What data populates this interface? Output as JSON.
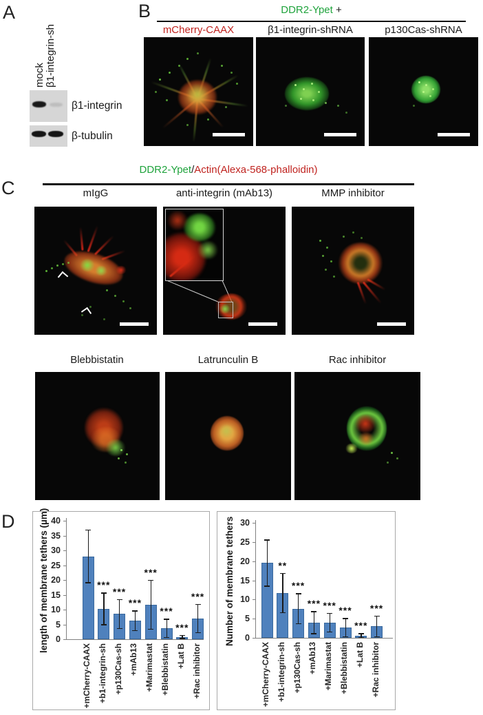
{
  "figure": {
    "panel_a": {
      "label": "A",
      "lanes": [
        "mock",
        "β1-integrin-sh"
      ],
      "blots": [
        {
          "name": "β1-integrin"
        },
        {
          "name": "β-tubulin"
        }
      ]
    },
    "panel_b": {
      "label": "B",
      "title_green": "DDR2-Ypet",
      "title_suffix": " +",
      "columns": [
        "mCherry-CAAX",
        "β1-integrin-shRNA",
        "p130Cas-shRNA"
      ]
    },
    "panel_c": {
      "label": "C",
      "title_green": "DDR2-Ypet",
      "title_sep": "/",
      "title_red": "Actin(Alexa-568-phalloidin)",
      "row1": [
        "mIgG",
        "anti-integrin (mAb13)",
        "MMP inhibitor"
      ],
      "row2": [
        "Blebbistatin",
        "Latrunculin B",
        "Rac inhibitor"
      ]
    },
    "panel_d": {
      "label": "D"
    }
  },
  "chart_data": [
    {
      "type": "bar",
      "title": "",
      "ylabel": "length of membrane tethers (µm)",
      "xlabel": "",
      "ylim": [
        0,
        40
      ],
      "ytick_step": 5,
      "grid": false,
      "legend": false,
      "categories": [
        "+mCherry-CAAX",
        "+b1-integrin-sh",
        "+p130Cas-sh",
        "+mAb13",
        "+Marimastat",
        "+Blebbistatin",
        "+Lat B",
        "+Rac inhibitor"
      ],
      "values": [
        28,
        10.3,
        8.5,
        6.3,
        11.7,
        3.7,
        0.8,
        7
      ],
      "errors": [
        9,
        5.5,
        5,
        3.4,
        8.4,
        3.2,
        0.65,
        4.9
      ],
      "significance": [
        "",
        "***",
        "***",
        "***",
        "***",
        "***",
        "***",
        "***"
      ]
    },
    {
      "type": "bar",
      "title": "",
      "ylabel": "Number of membrane tethers",
      "xlabel": "",
      "ylim": [
        0,
        30
      ],
      "ytick_step": 5,
      "grid": false,
      "legend": false,
      "categories": [
        "+mCherry-CAAX",
        "+b1-integrin-sh",
        "+p130Cas-sh",
        "+mAb13",
        "+Marimastat",
        "+Blebbistatin",
        "+Lat B",
        "+Rac inhibitor"
      ],
      "values": [
        19.5,
        11.7,
        7.6,
        4.0,
        4.0,
        2.7,
        0.6,
        3.0
      ],
      "errors": [
        6.1,
        5.2,
        4.0,
        3.0,
        2.5,
        2.5,
        0.6,
        2.8
      ],
      "significance": [
        "",
        "**",
        "***",
        "***",
        "***",
        "***",
        "***",
        "***"
      ]
    }
  ],
  "colors": {
    "green_text": "#1fa33c",
    "red_text": "#c0231f",
    "bar_fill": "#4f81bd",
    "bar_edge": "#39689c",
    "error_bar": "#1a1a1a"
  }
}
